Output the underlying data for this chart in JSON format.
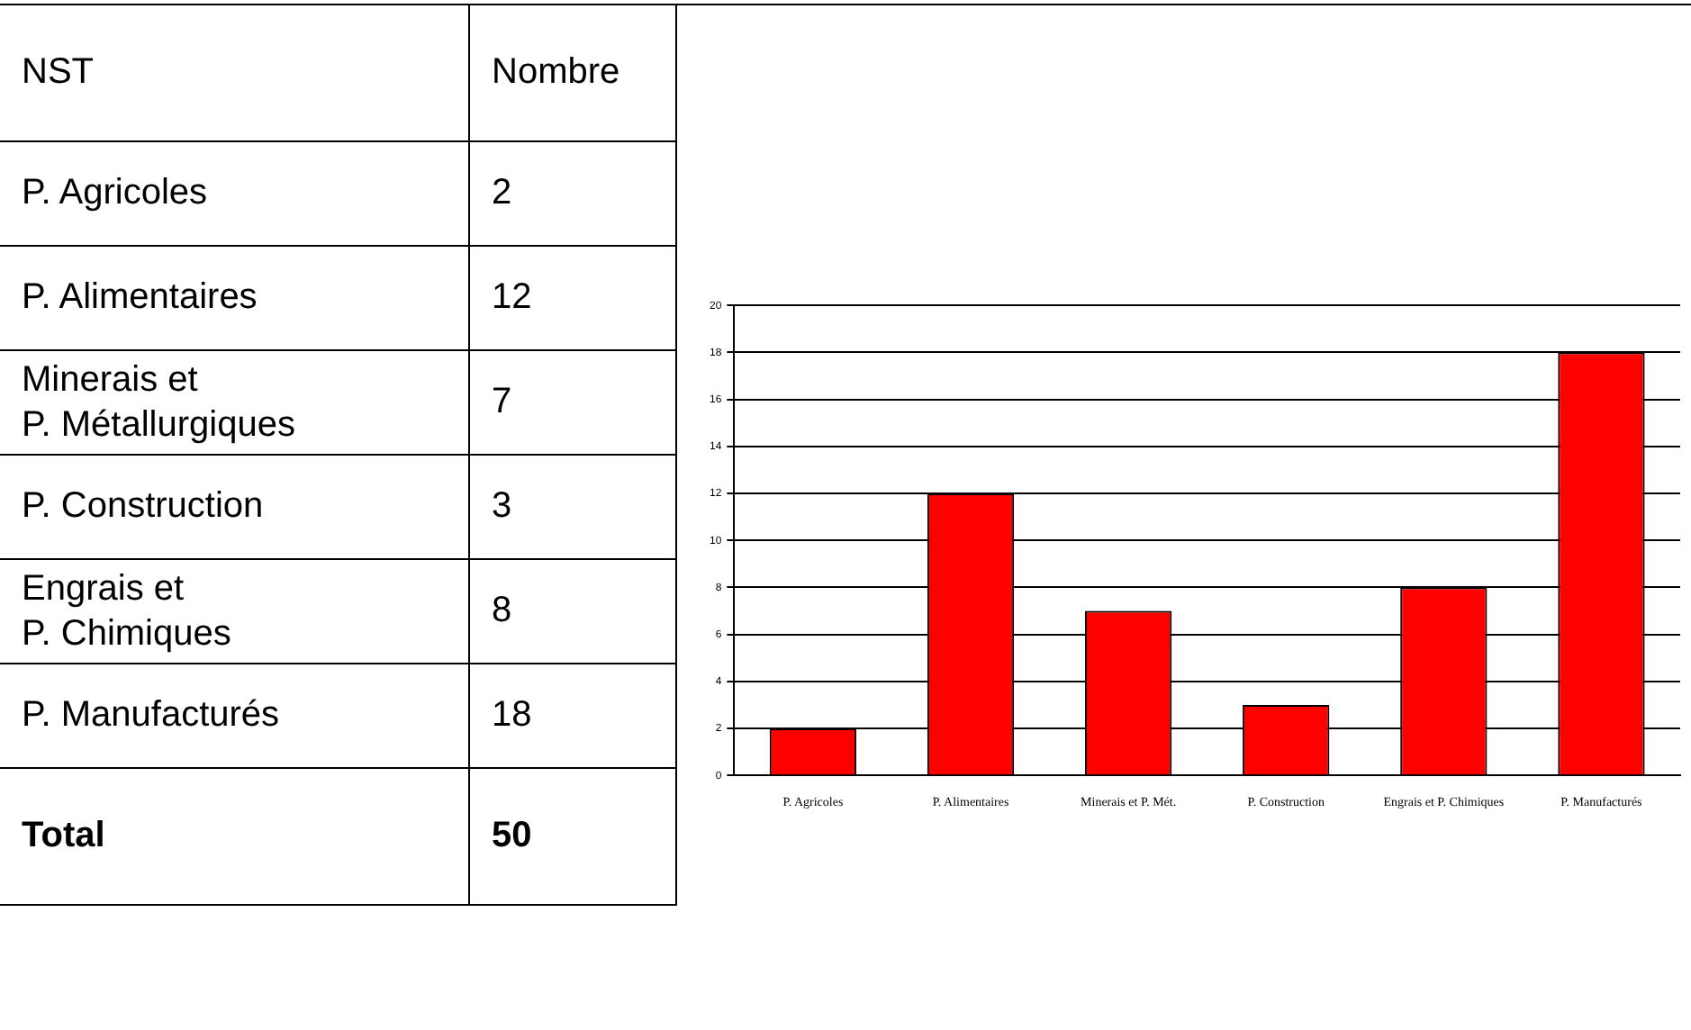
{
  "chart_data": {
    "type": "bar",
    "categories": [
      "P. Agricoles",
      "P. Alimentaires",
      "Minerais et P. Mét.",
      "P. Construction",
      "Engrais et P. Chimiques",
      "P. Manufacturés"
    ],
    "values": [
      2,
      12,
      7,
      3,
      8,
      18
    ],
    "color": "#ff0000",
    "ylim": [
      0,
      20
    ],
    "yticks": [
      0,
      2,
      4,
      6,
      8,
      10,
      12,
      14,
      16,
      18,
      20
    ],
    "grid": "y",
    "legend": false,
    "annotations": [
      "NST",
      "Nombre",
      "P. Agricoles",
      "2",
      "P. Alimentaires",
      "12",
      "Minerais et\nP. Métallurgiques",
      "7",
      "P. Construction",
      "3",
      "Engrais et\nP. Chimiques",
      "8",
      "P. Manufacturés",
      "18",
      "Total",
      "50"
    ]
  }
}
